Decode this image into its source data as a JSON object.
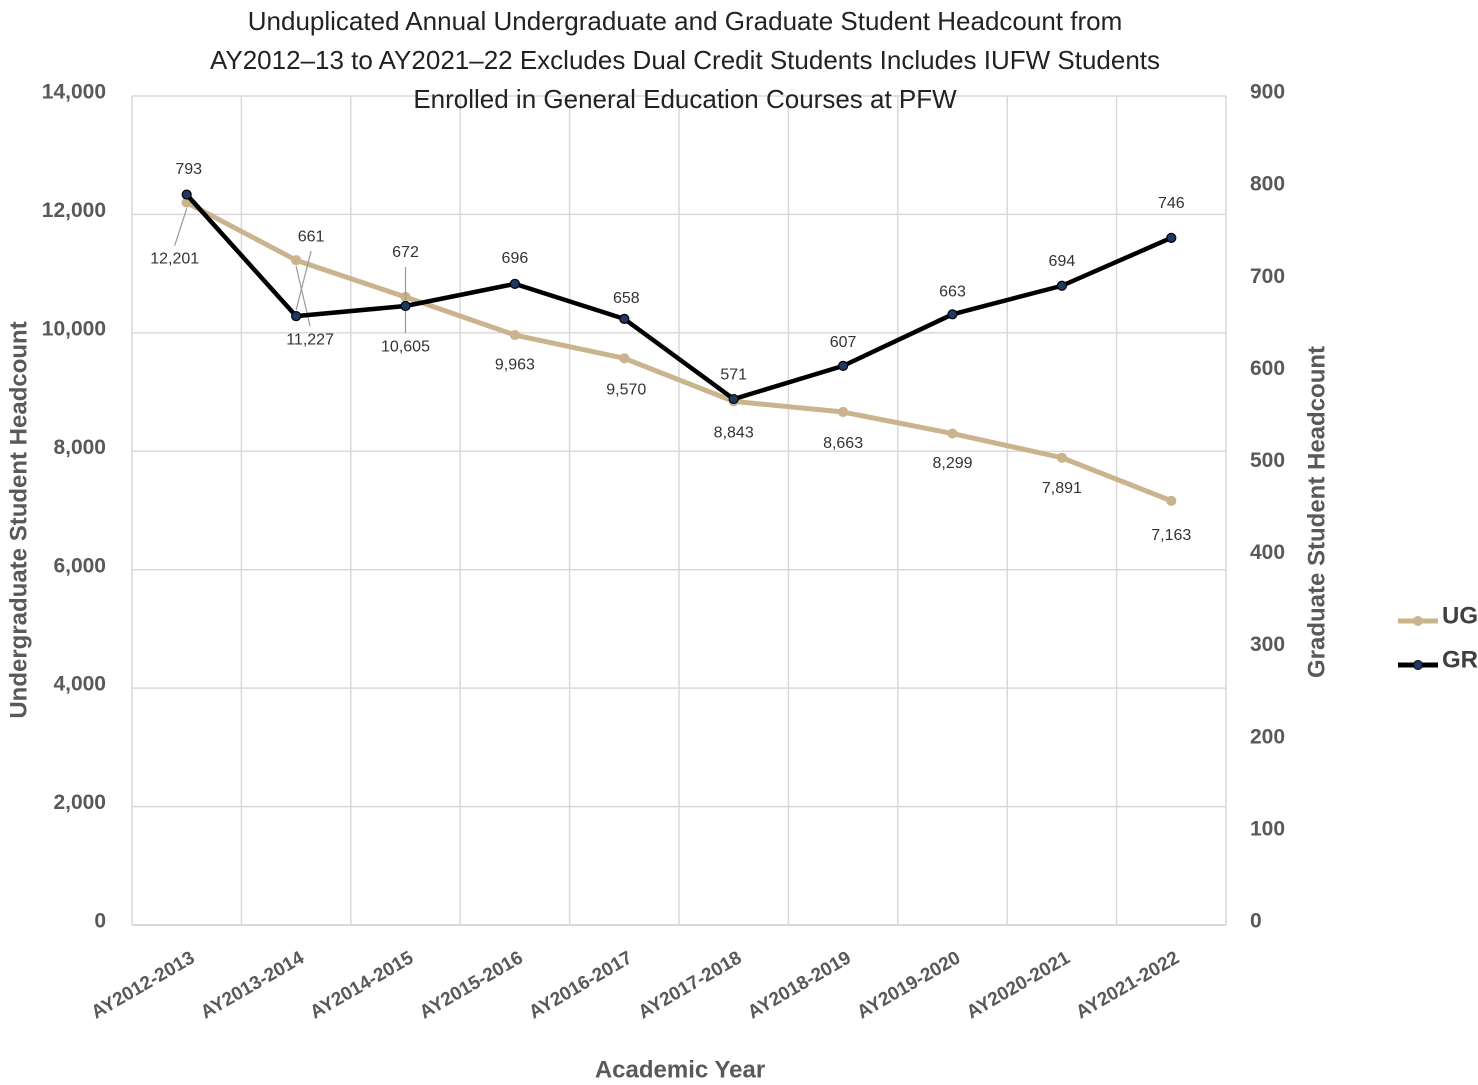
{
  "chart_data": {
    "type": "line",
    "title": "Unduplicated Annual Undergraduate and Graduate Student Headcount from AY2012–13 to AY2021–22 Excludes Dual Credit Students Includes IUFW Students Enrolled in General Education Courses at PFW",
    "x_label": "Academic Year",
    "y_label": "Undergraduate Student Headcount",
    "y2_label": "Graduate Student Headcount",
    "categories": [
      "AY2012-2013",
      "AY2013-2014",
      "AY2014-2015",
      "AY2015-2016",
      "AY2016-2017",
      "AY2017-2018",
      "AY2018-2019",
      "AY2019-2020",
      "AY2020-2021",
      "AY2021-2022"
    ],
    "series": [
      {
        "name": "UG",
        "color": "#c9b48e",
        "values": [
          12201,
          11227,
          10605,
          9963,
          9570,
          8843,
          8663,
          8299,
          7891,
          7163
        ],
        "value_labels": [
          "12,201",
          "11,227",
          "10,605",
          "9,963",
          "9,570",
          "8,843",
          "8,663",
          "8,299",
          "7,891",
          "7,163"
        ]
      },
      {
        "name": "GR",
        "color": "#000000",
        "marker_color": "#1f3864",
        "axis": "y2",
        "values": [
          793,
          661,
          672,
          696,
          658,
          571,
          607,
          663,
          694,
          746
        ]
      }
    ],
    "ylim": [
      0,
      14000
    ],
    "yticks": [
      {
        "value": 0,
        "label": "0"
      },
      {
        "value": 2000,
        "label": "2,000"
      },
      {
        "value": 4000,
        "label": "4,000"
      },
      {
        "value": 6000,
        "label": "6,000"
      },
      {
        "value": 8000,
        "label": "8,000"
      },
      {
        "value": 10000,
        "label": "10,000"
      },
      {
        "value": 12000,
        "label": "12,000"
      },
      {
        "value": 14000,
        "label": "14,000"
      }
    ],
    "y2lim": [
      0,
      900
    ],
    "y2ticks": [
      0,
      100,
      200,
      300,
      400,
      500,
      600,
      700,
      800,
      900
    ],
    "grid": true,
    "legend": "right"
  }
}
